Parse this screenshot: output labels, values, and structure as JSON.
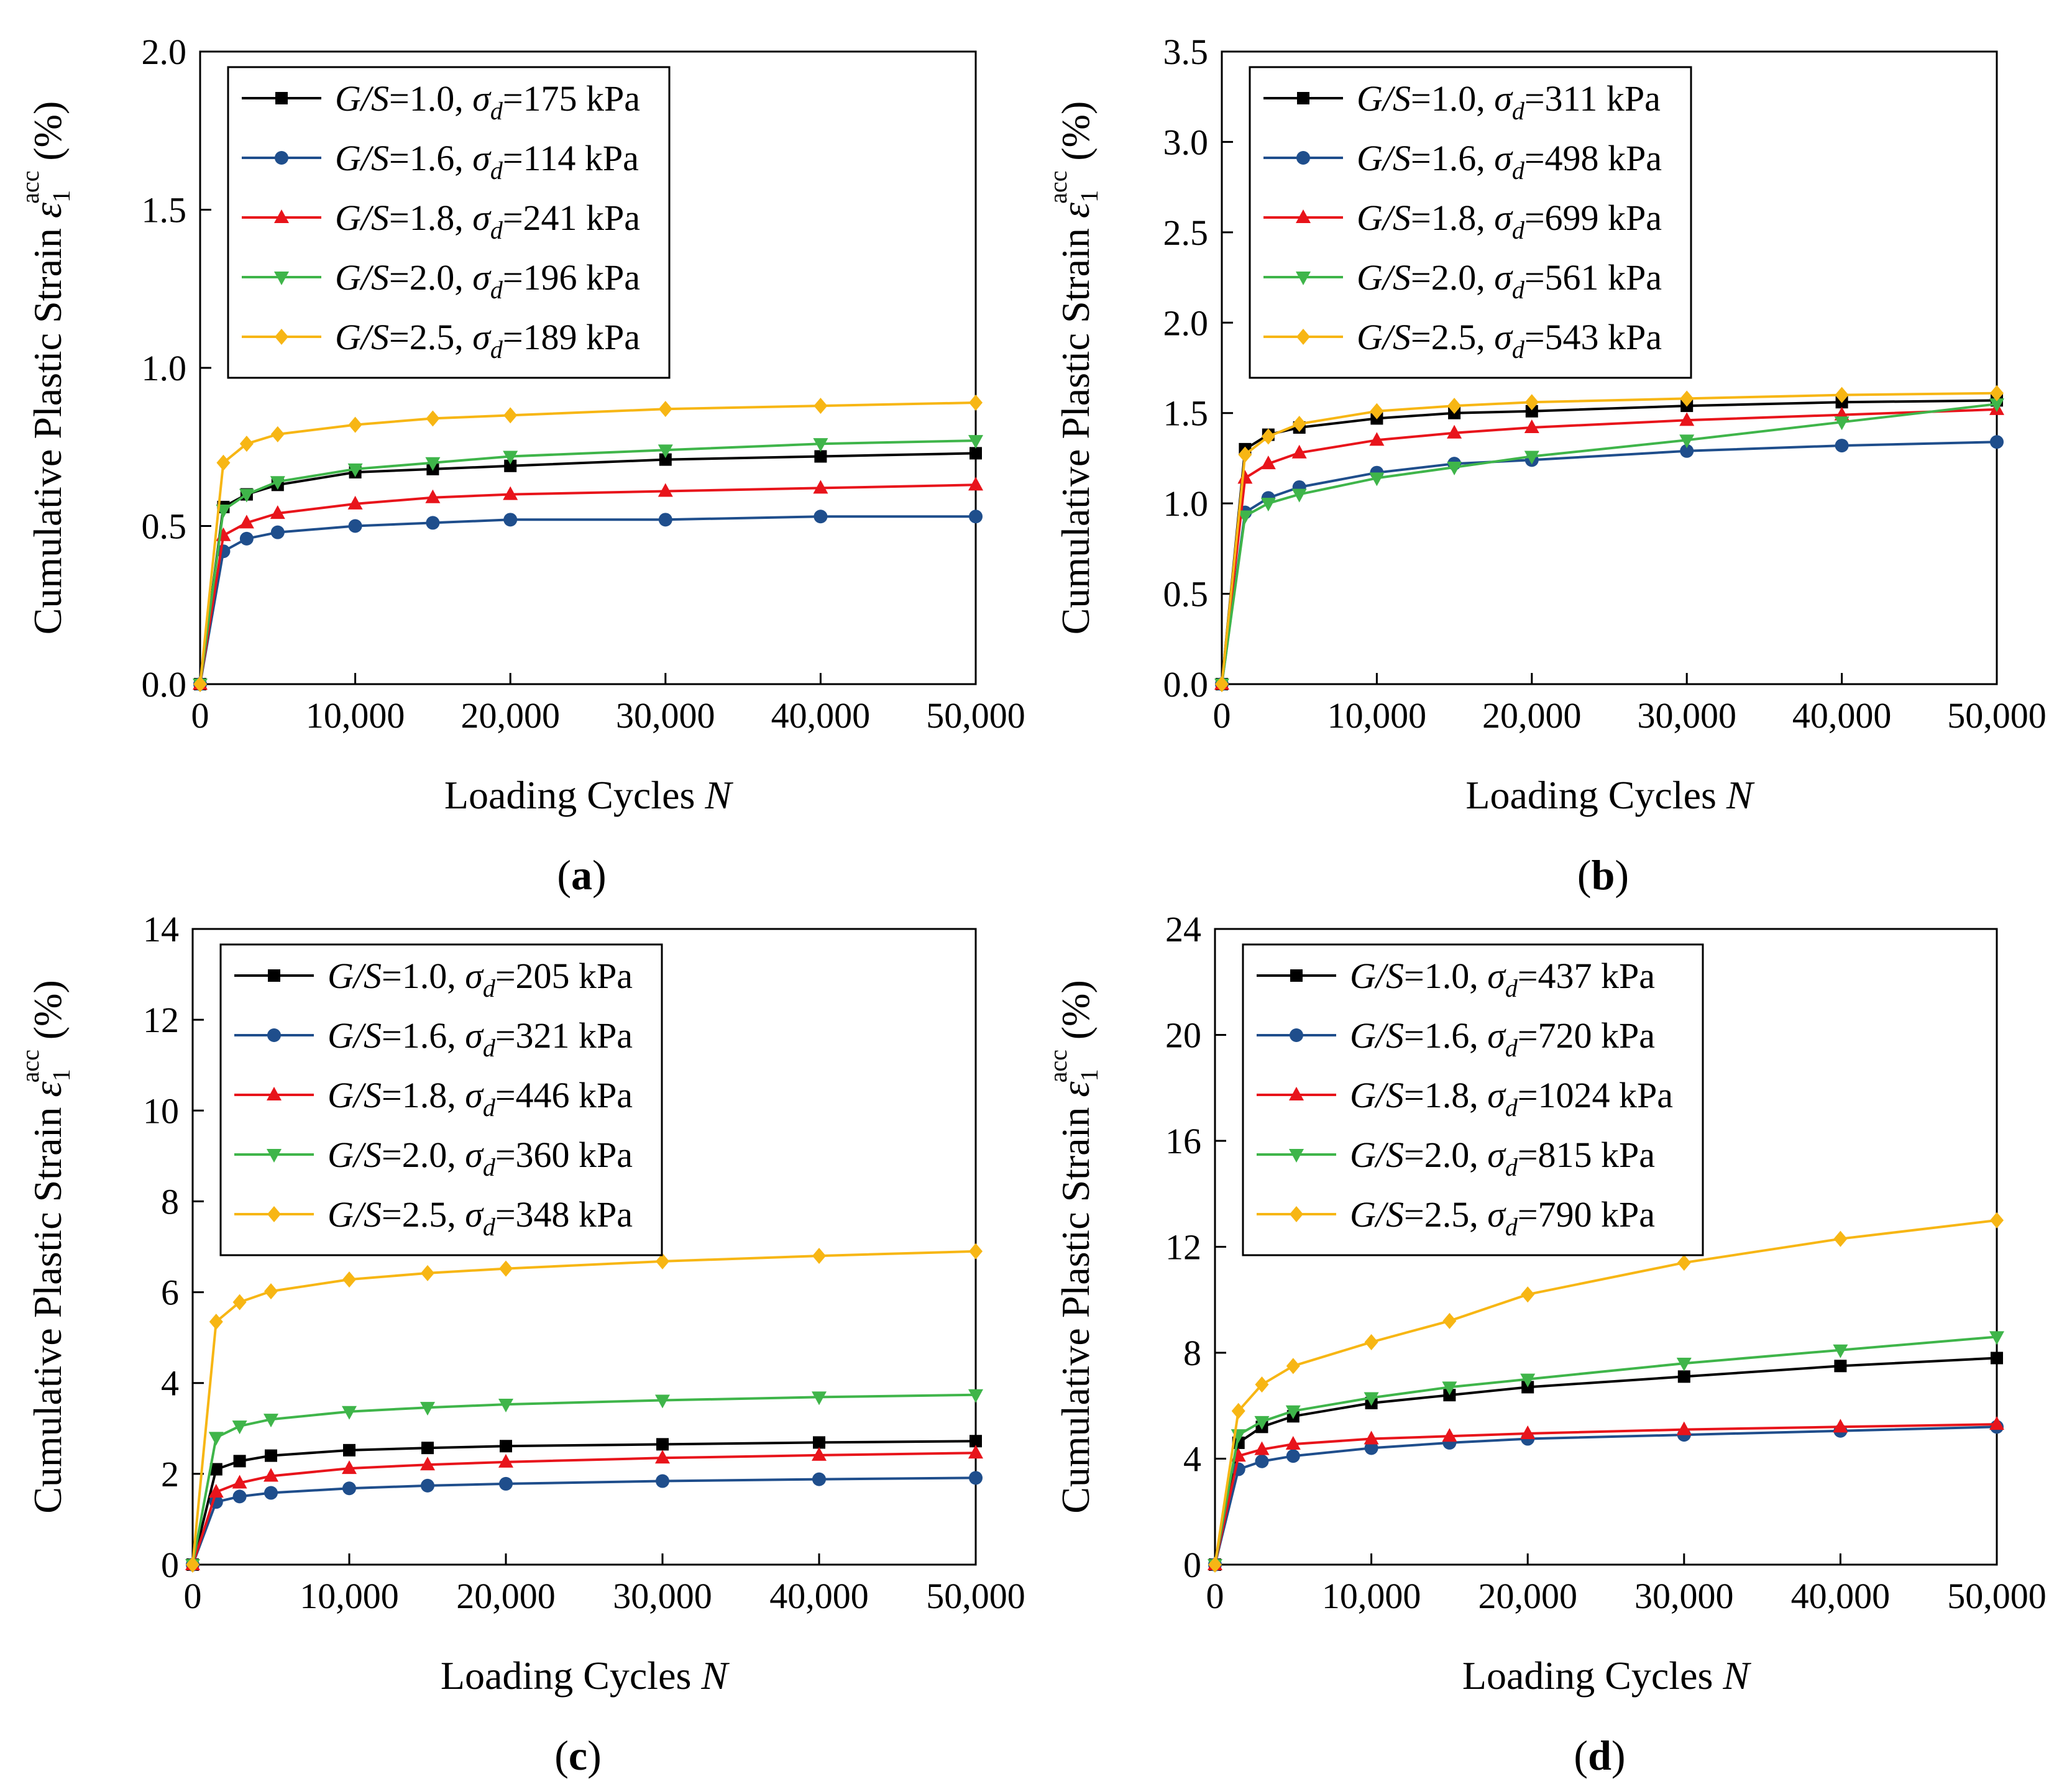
{
  "chart_data": [
    {
      "type": "line",
      "panel_label": "a",
      "xlabel": "Loading Cycles",
      "xlabel_var": "N",
      "ylabel": "Cumulative Plastic Strain",
      "ylabel_unit": "(%)",
      "xlim": [
        0,
        50000
      ],
      "ylim": [
        0,
        2.0
      ],
      "xticks": [
        0,
        10000,
        20000,
        30000,
        40000,
        50000
      ],
      "xtick_labels": [
        "0",
        "10,000",
        "20,000",
        "30,000",
        "40,000",
        "50,000"
      ],
      "yticks": [
        0,
        0.5,
        1.0,
        1.5,
        2.0
      ],
      "ytick_labels": [
        "0.0",
        "0.5",
        "1.0",
        "1.5",
        "2.0"
      ],
      "legend_position": "top-left",
      "series": [
        {
          "name": "G/S=1.0, σd=175 kPa",
          "gs": "1.0",
          "sd": "175 kPa",
          "color": "#000000",
          "marker": "square",
          "x": [
            0,
            1500,
            3000,
            5000,
            10000,
            15000,
            20000,
            30000,
            40000,
            50000
          ],
          "y": [
            0,
            0.56,
            0.6,
            0.63,
            0.67,
            0.68,
            0.69,
            0.71,
            0.72,
            0.73
          ]
        },
        {
          "name": "G/S=1.6, σd=114 kPa",
          "gs": "1.6",
          "sd": "114 kPa",
          "color": "#1f4e8c",
          "marker": "circle",
          "x": [
            0,
            1500,
            3000,
            5000,
            10000,
            15000,
            20000,
            30000,
            40000,
            50000
          ],
          "y": [
            0,
            0.42,
            0.46,
            0.48,
            0.5,
            0.51,
            0.52,
            0.52,
            0.53,
            0.53
          ]
        },
        {
          "name": "G/S=1.8, σd=241 kPa",
          "gs": "1.8",
          "sd": "241 kPa",
          "color": "#e8141b",
          "marker": "triangle-up",
          "x": [
            0,
            1500,
            3000,
            5000,
            10000,
            15000,
            20000,
            30000,
            40000,
            50000
          ],
          "y": [
            0,
            0.47,
            0.51,
            0.54,
            0.57,
            0.59,
            0.6,
            0.61,
            0.62,
            0.63
          ]
        },
        {
          "name": "G/S=2.0, σd=196 kPa",
          "gs": "2.0",
          "sd": "196 kPa",
          "color": "#3fb54a",
          "marker": "triangle-down",
          "x": [
            0,
            1500,
            3000,
            5000,
            10000,
            15000,
            20000,
            30000,
            40000,
            50000
          ],
          "y": [
            0,
            0.55,
            0.6,
            0.64,
            0.68,
            0.7,
            0.72,
            0.74,
            0.76,
            0.77
          ]
        },
        {
          "name": "G/S=2.5, σd=189 kPa",
          "gs": "2.5",
          "sd": "189 kPa",
          "color": "#f7b614",
          "marker": "diamond",
          "x": [
            0,
            1500,
            3000,
            5000,
            10000,
            15000,
            20000,
            30000,
            40000,
            50000
          ],
          "y": [
            0,
            0.7,
            0.76,
            0.79,
            0.82,
            0.84,
            0.85,
            0.87,
            0.88,
            0.89
          ]
        }
      ]
    },
    {
      "type": "line",
      "panel_label": "b",
      "xlabel": "Loading Cycles",
      "xlabel_var": "N",
      "ylabel": "Cumulative Plastic Strain",
      "ylabel_unit": "(%)",
      "xlim": [
        0,
        50000
      ],
      "ylim": [
        0,
        3.5
      ],
      "xticks": [
        0,
        10000,
        20000,
        30000,
        40000,
        50000
      ],
      "xtick_labels": [
        "0",
        "10,000",
        "20,000",
        "30,000",
        "40,000",
        "50,000"
      ],
      "yticks": [
        0,
        0.5,
        1.0,
        1.5,
        2.0,
        2.5,
        3.0,
        3.5
      ],
      "ytick_labels": [
        "0.0",
        "0.5",
        "1.0",
        "1.5",
        "2.0",
        "2.5",
        "3.0",
        "3.5"
      ],
      "legend_position": "top-left",
      "series": [
        {
          "name": "G/S=1.0, σd=311 kPa",
          "gs": "1.0",
          "sd": "311 kPa",
          "color": "#000000",
          "marker": "square",
          "x": [
            0,
            1500,
            3000,
            5000,
            10000,
            15000,
            20000,
            30000,
            40000,
            50000
          ],
          "y": [
            0,
            1.3,
            1.38,
            1.42,
            1.47,
            1.5,
            1.51,
            1.54,
            1.56,
            1.57
          ]
        },
        {
          "name": "G/S=1.6, σd=498 kPa",
          "gs": "1.6",
          "sd": "498 kPa",
          "color": "#1f4e8c",
          "marker": "circle",
          "x": [
            0,
            1500,
            3000,
            5000,
            10000,
            15000,
            20000,
            30000,
            40000,
            50000
          ],
          "y": [
            0,
            0.95,
            1.03,
            1.09,
            1.17,
            1.22,
            1.24,
            1.29,
            1.32,
            1.34
          ]
        },
        {
          "name": "G/S=1.8, σd=699 kPa",
          "gs": "1.8",
          "sd": "699 kPa",
          "color": "#e8141b",
          "marker": "triangle-up",
          "x": [
            0,
            1500,
            3000,
            5000,
            10000,
            15000,
            20000,
            30000,
            40000,
            50000
          ],
          "y": [
            0,
            1.14,
            1.22,
            1.28,
            1.35,
            1.39,
            1.42,
            1.46,
            1.49,
            1.52
          ]
        },
        {
          "name": "G/S=2.0, σd=561 kPa",
          "gs": "2.0",
          "sd": "561 kPa",
          "color": "#3fb54a",
          "marker": "triangle-down",
          "x": [
            0,
            1500,
            3000,
            5000,
            10000,
            15000,
            20000,
            30000,
            40000,
            50000
          ],
          "y": [
            0,
            0.93,
            1.0,
            1.05,
            1.14,
            1.2,
            1.26,
            1.35,
            1.45,
            1.55
          ]
        },
        {
          "name": "G/S=2.5, σd=543 kPa",
          "gs": "2.5",
          "sd": "543 kPa",
          "color": "#f7b614",
          "marker": "diamond",
          "x": [
            0,
            1500,
            3000,
            5000,
            10000,
            15000,
            20000,
            30000,
            40000,
            50000
          ],
          "y": [
            0,
            1.27,
            1.37,
            1.44,
            1.51,
            1.54,
            1.56,
            1.58,
            1.6,
            1.61
          ]
        }
      ]
    },
    {
      "type": "line",
      "panel_label": "c",
      "xlabel": "Loading Cycles",
      "xlabel_var": "N",
      "ylabel": "Cumulative Plastic Strain",
      "ylabel_unit": "(%)",
      "xlim": [
        0,
        50000
      ],
      "ylim": [
        0,
        14
      ],
      "xticks": [
        0,
        10000,
        20000,
        30000,
        40000,
        50000
      ],
      "xtick_labels": [
        "0",
        "10,000",
        "20,000",
        "30,000",
        "40,000",
        "50,000"
      ],
      "yticks": [
        0,
        2,
        4,
        6,
        8,
        10,
        12,
        14
      ],
      "ytick_labels": [
        "0",
        "2",
        "4",
        "6",
        "8",
        "10",
        "12",
        "14"
      ],
      "legend_position": "top-left",
      "series": [
        {
          "name": "G/S=1.0, σd=205 kPa",
          "gs": "1.0",
          "sd": "205 kPa",
          "color": "#000000",
          "marker": "square",
          "x": [
            0,
            1500,
            3000,
            5000,
            10000,
            15000,
            20000,
            30000,
            40000,
            50000
          ],
          "y": [
            0,
            2.1,
            2.28,
            2.4,
            2.52,
            2.57,
            2.61,
            2.65,
            2.69,
            2.72
          ]
        },
        {
          "name": "G/S=1.6, σd=321 kPa",
          "gs": "1.6",
          "sd": "321 kPa",
          "color": "#1f4e8c",
          "marker": "circle",
          "x": [
            0,
            1500,
            3000,
            5000,
            10000,
            15000,
            20000,
            30000,
            40000,
            50000
          ],
          "y": [
            0,
            1.38,
            1.5,
            1.58,
            1.68,
            1.74,
            1.78,
            1.84,
            1.88,
            1.91
          ]
        },
        {
          "name": "G/S=1.8, σd=446 kPa",
          "gs": "1.8",
          "sd": "446 kPa",
          "color": "#e8141b",
          "marker": "triangle-up",
          "x": [
            0,
            1500,
            3000,
            5000,
            10000,
            15000,
            20000,
            30000,
            40000,
            50000
          ],
          "y": [
            0,
            1.6,
            1.8,
            1.95,
            2.12,
            2.2,
            2.26,
            2.35,
            2.41,
            2.46
          ]
        },
        {
          "name": "G/S=2.0, σd=360 kPa",
          "gs": "2.0",
          "sd": "360 kPa",
          "color": "#3fb54a",
          "marker": "triangle-down",
          "x": [
            0,
            1500,
            3000,
            5000,
            10000,
            15000,
            20000,
            30000,
            40000,
            50000
          ],
          "y": [
            0,
            2.8,
            3.05,
            3.2,
            3.37,
            3.46,
            3.53,
            3.62,
            3.69,
            3.74
          ]
        },
        {
          "name": "G/S=2.5, σd=348 kPa",
          "gs": "2.5",
          "sd": "348 kPa",
          "color": "#f7b614",
          "marker": "diamond",
          "x": [
            0,
            1500,
            3000,
            5000,
            10000,
            15000,
            20000,
            30000,
            40000,
            50000
          ],
          "y": [
            0,
            5.35,
            5.78,
            6.02,
            6.28,
            6.42,
            6.52,
            6.68,
            6.8,
            6.9
          ]
        }
      ]
    },
    {
      "type": "line",
      "panel_label": "d",
      "xlabel": "Loading Cycles",
      "xlabel_var": "N",
      "ylabel": "Cumulative Plastic Strain",
      "ylabel_unit": "(%)",
      "xlim": [
        0,
        50000
      ],
      "ylim": [
        0,
        24
      ],
      "xticks": [
        0,
        10000,
        20000,
        30000,
        40000,
        50000
      ],
      "xtick_labels": [
        "0",
        "10,000",
        "20,000",
        "30,000",
        "40,000",
        "50,000"
      ],
      "yticks": [
        0,
        4,
        8,
        12,
        16,
        20,
        24
      ],
      "ytick_labels": [
        "0",
        "4",
        "8",
        "12",
        "16",
        "20",
        "24"
      ],
      "legend_position": "top-left",
      "series": [
        {
          "name": "G/S=1.0, σd=437 kPa",
          "gs": "1.0",
          "sd": "437 kPa",
          "color": "#000000",
          "marker": "square",
          "x": [
            0,
            1500,
            3000,
            5000,
            10000,
            15000,
            20000,
            30000,
            40000,
            50000
          ],
          "y": [
            0,
            4.6,
            5.2,
            5.6,
            6.1,
            6.4,
            6.7,
            7.1,
            7.5,
            7.8
          ]
        },
        {
          "name": "G/S=1.6, σd=720 kPa",
          "gs": "1.6",
          "sd": "720 kPa",
          "color": "#1f4e8c",
          "marker": "circle",
          "x": [
            0,
            1500,
            3000,
            5000,
            10000,
            15000,
            20000,
            30000,
            40000,
            50000
          ],
          "y": [
            0,
            3.6,
            3.9,
            4.1,
            4.4,
            4.6,
            4.75,
            4.9,
            5.05,
            5.2
          ]
        },
        {
          "name": "G/S=1.8, σd=1024 kPa",
          "gs": "1.8",
          "sd": "1024 kPa",
          "color": "#e8141b",
          "marker": "triangle-up",
          "x": [
            0,
            1500,
            3000,
            5000,
            10000,
            15000,
            20000,
            30000,
            40000,
            50000
          ],
          "y": [
            0,
            4.1,
            4.35,
            4.55,
            4.75,
            4.85,
            4.95,
            5.1,
            5.2,
            5.3
          ]
        },
        {
          "name": "G/S=2.0, σd=815 kPa",
          "gs": "2.0",
          "sd": "815 kPa",
          "color": "#3fb54a",
          "marker": "triangle-down",
          "x": [
            0,
            1500,
            3000,
            5000,
            10000,
            15000,
            20000,
            30000,
            40000,
            50000
          ],
          "y": [
            0,
            4.9,
            5.4,
            5.8,
            6.3,
            6.7,
            7.0,
            7.6,
            8.1,
            8.6
          ]
        },
        {
          "name": "G/S=2.5, σd=790 kPa",
          "gs": "2.5",
          "sd": "790 kPa",
          "color": "#f7b614",
          "marker": "diamond",
          "x": [
            0,
            1500,
            3000,
            5000,
            10000,
            15000,
            20000,
            30000,
            40000,
            50000
          ],
          "y": [
            0,
            5.8,
            6.8,
            7.5,
            8.4,
            9.2,
            10.2,
            11.4,
            12.3,
            13.0
          ]
        }
      ]
    }
  ]
}
